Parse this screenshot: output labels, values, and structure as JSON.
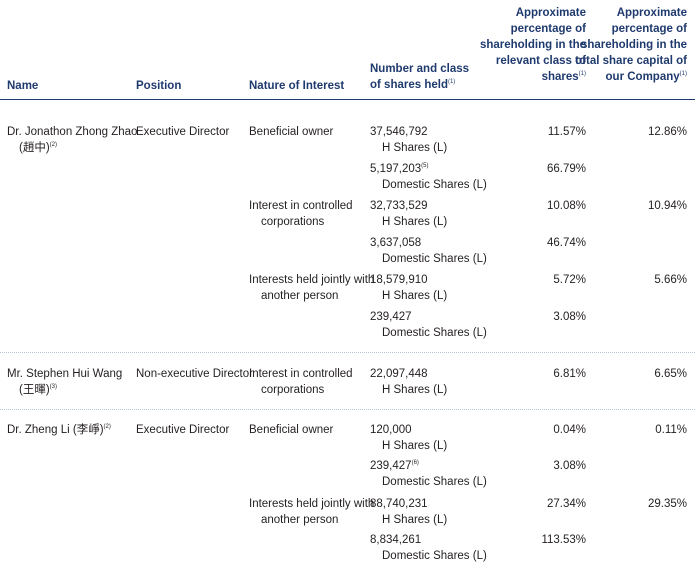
{
  "headers": {
    "name": "Name",
    "position": "Position",
    "nature": "Nature of Interest",
    "shares_l1": "Number and class",
    "shares_l2": "of shares held",
    "shares_note": "(1)",
    "pct_class_l1": "Approximate",
    "pct_class_l2": "percentage of",
    "pct_class_l3": "shareholding in the",
    "pct_class_l4": "relevant class of",
    "pct_class_l5": "shares",
    "pct_class_note": "(1)",
    "pct_total_l1": "Approximate",
    "pct_total_l2": "percentage of",
    "pct_total_l3": "shareholding in the",
    "pct_total_l4": "total share capital of",
    "pct_total_l5": "our Company",
    "pct_total_note": "(1)"
  },
  "persons": [
    {
      "name": "Dr. Jonathon Zhong Zhao",
      "name_cn": "(趙中)",
      "name_note": "(2)",
      "position": "Executive Director",
      "interests": [
        {
          "nature_l1": "Beneficial owner",
          "nature_l2": "",
          "total_pct": "12.86%",
          "holdings": [
            {
              "number": "37,546,792",
              "note": "",
              "class": "H Shares (L)",
              "pct": "11.57%"
            },
            {
              "number": "5,197,203",
              "note": "(5)",
              "class": "Domestic Shares (L)",
              "pct": "66.79%"
            }
          ]
        },
        {
          "nature_l1": "Interest in controlled",
          "nature_l2": "corporations",
          "total_pct": "10.94%",
          "holdings": [
            {
              "number": "32,733,529",
              "note": "",
              "class": "H Shares (L)",
              "pct": "10.08%"
            },
            {
              "number": "3,637,058",
              "note": "",
              "class": "Domestic Shares (L)",
              "pct": "46.74%"
            }
          ]
        },
        {
          "nature_l1": "Interests held jointly with",
          "nature_l2": "another person",
          "total_pct": "5.66%",
          "holdings": [
            {
              "number": "18,579,910",
              "note": "",
              "class": "H Shares (L)",
              "pct": "5.72%"
            },
            {
              "number": "239,427",
              "note": "",
              "class": "Domestic Shares (L)",
              "pct": "3.08%"
            }
          ]
        }
      ]
    },
    {
      "name": "Mr. Stephen Hui Wang",
      "name_cn": "(王暉)",
      "name_note": "(3)",
      "position": "Non-executive Director",
      "interests": [
        {
          "nature_l1": "Interest in controlled",
          "nature_l2": "corporations",
          "total_pct": "6.65%",
          "holdings": [
            {
              "number": "22,097,448",
              "note": "",
              "class": "H Shares (L)",
              "pct": "6.81%"
            }
          ]
        }
      ]
    },
    {
      "name": "Dr. Zheng Li",
      "name_cn": "(李崢)",
      "name_note": "(2)",
      "position": "Executive Director",
      "interests": [
        {
          "nature_l1": "Beneficial owner",
          "nature_l2": "",
          "total_pct": "0.11%",
          "holdings": [
            {
              "number": "120,000",
              "note": "",
              "class": "H Shares (L)",
              "pct": "0.04%"
            },
            {
              "number": "239,427",
              "note": "(6)",
              "class": "Domestic Shares (L)",
              "pct": "3.08%"
            }
          ]
        },
        {
          "nature_l1": "Interests held jointly with",
          "nature_l2": "another person",
          "total_pct": "29.35%",
          "holdings": [
            {
              "number": "88,740,231",
              "note": "",
              "class": "H Shares (L)",
              "pct": "27.34%"
            },
            {
              "number": "8,834,261",
              "note": "",
              "class": "Domestic Shares (L)",
              "pct": "113.53%"
            }
          ]
        }
      ]
    }
  ]
}
